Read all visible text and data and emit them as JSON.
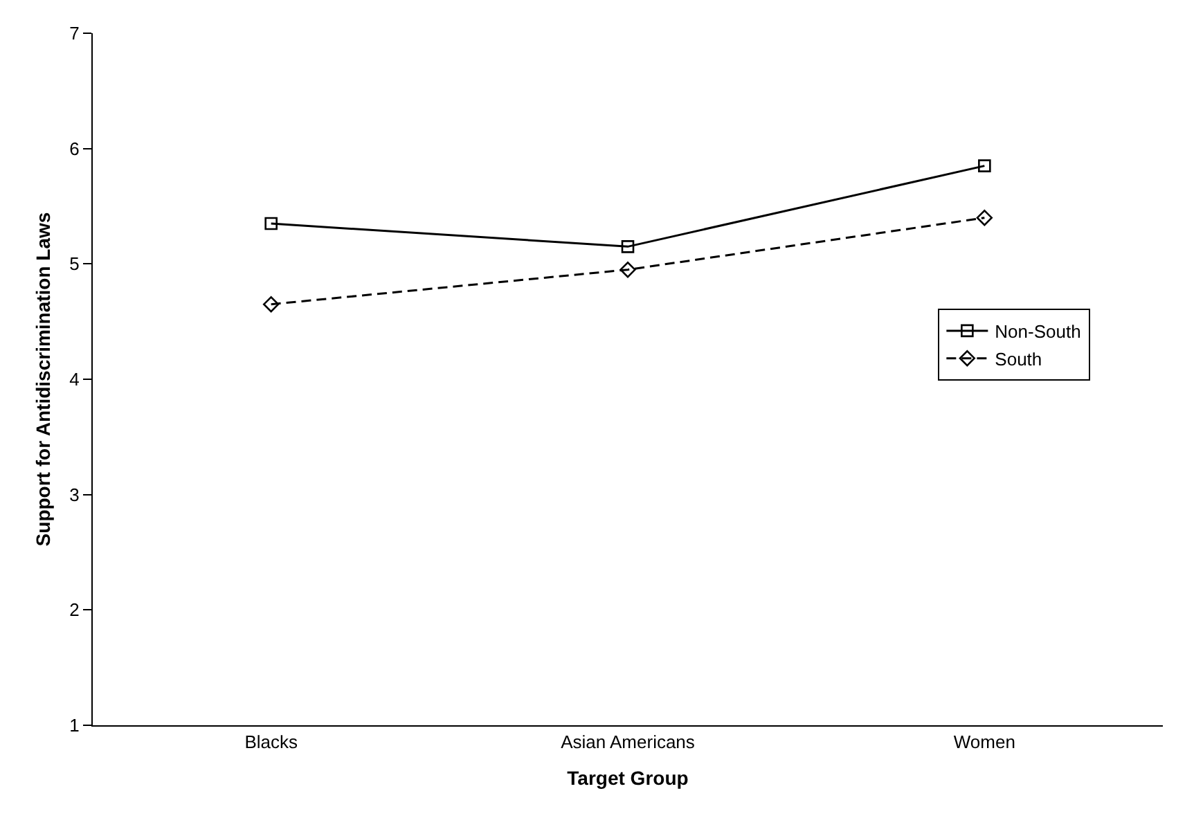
{
  "chart_data": {
    "type": "line",
    "xlabel": "Target Group",
    "ylabel": "Support for Antidiscrimination Laws",
    "categories": [
      "Blacks",
      "Asian Americans",
      "Women"
    ],
    "series": [
      {
        "name": "Non-South",
        "color": "#000000",
        "values": [
          5.35,
          5.15,
          5.85
        ],
        "marker": "square",
        "line_style": "solid"
      },
      {
        "name": "South",
        "color": "#000000",
        "values": [
          4.65,
          4.95,
          5.4
        ],
        "marker": "diamond",
        "line_style": "dashed"
      }
    ],
    "ylim": [
      1,
      7
    ],
    "yticks": [
      1,
      2,
      3,
      4,
      5,
      6,
      7
    ],
    "grid": false,
    "legend": "right"
  }
}
